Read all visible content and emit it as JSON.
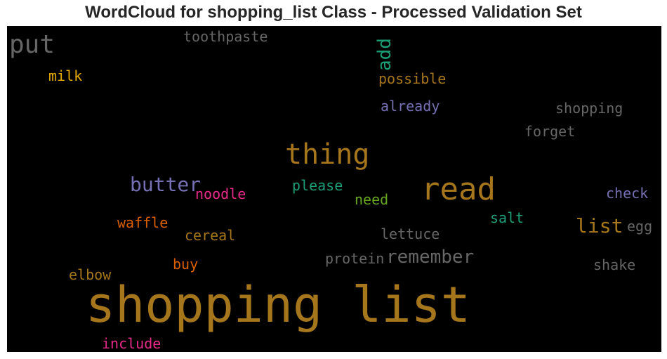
{
  "chart_data": {
    "type": "wordcloud",
    "title": "WordCloud for shopping_list Class - Processed Validation Set",
    "background": "#000000",
    "words": [
      {
        "text": "shopping list",
        "color": "#A6761D",
        "rotation": 0
      },
      {
        "text": "read",
        "color": "#A6761D",
        "rotation": 0
      },
      {
        "text": "thing",
        "color": "#A6761D",
        "rotation": 0
      },
      {
        "text": "put",
        "color": "#666666",
        "rotation": 0
      },
      {
        "text": "butter",
        "color": "#7570B3",
        "rotation": 0
      },
      {
        "text": "remember",
        "color": "#666666",
        "rotation": 0
      },
      {
        "text": "list",
        "color": "#A6761D",
        "rotation": 0
      },
      {
        "text": "add",
        "color": "#1B9E77",
        "rotation": -90
      },
      {
        "text": "toothpaste",
        "color": "#666666",
        "rotation": 0
      },
      {
        "text": "milk",
        "color": "#E6AB02",
        "rotation": 0
      },
      {
        "text": "possible",
        "color": "#A6761D",
        "rotation": 0
      },
      {
        "text": "already",
        "color": "#7570B3",
        "rotation": 0
      },
      {
        "text": "shopping",
        "color": "#666666",
        "rotation": 0
      },
      {
        "text": "forget",
        "color": "#666666",
        "rotation": 0
      },
      {
        "text": "noodle",
        "color": "#E7298A",
        "rotation": 0
      },
      {
        "text": "please",
        "color": "#1B9E77",
        "rotation": 0
      },
      {
        "text": "check",
        "color": "#7570B3",
        "rotation": 0
      },
      {
        "text": "need",
        "color": "#66A61E",
        "rotation": 0
      },
      {
        "text": "salt",
        "color": "#1B9E77",
        "rotation": 0
      },
      {
        "text": "waffle",
        "color": "#D95F02",
        "rotation": 0
      },
      {
        "text": "cereal",
        "color": "#A6761D",
        "rotation": 0
      },
      {
        "text": "lettuce",
        "color": "#666666",
        "rotation": 0
      },
      {
        "text": "egg",
        "color": "#666666",
        "rotation": 0
      },
      {
        "text": "protein",
        "color": "#666666",
        "rotation": 0
      },
      {
        "text": "buy",
        "color": "#D95F02",
        "rotation": 0
      },
      {
        "text": "shake",
        "color": "#666666",
        "rotation": 0
      },
      {
        "text": "elbow",
        "color": "#A6761D",
        "rotation": 0
      },
      {
        "text": "include",
        "color": "#E7298A",
        "rotation": 0
      }
    ]
  }
}
